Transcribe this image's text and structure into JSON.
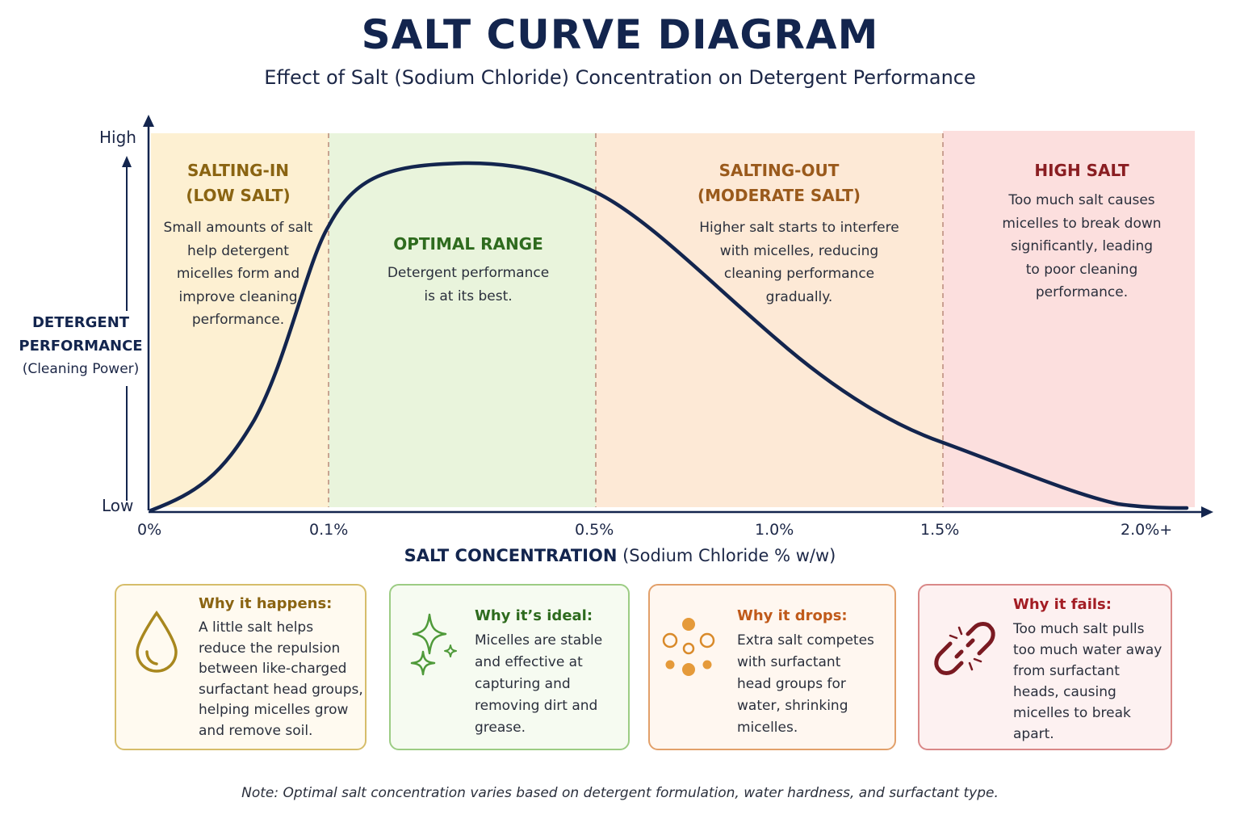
{
  "title": "SALT CURVE DIAGRAM",
  "subtitle": "Effect of Salt (Sodium Chloride) Concentration on Detergent Performance",
  "y_axis": {
    "high": "High",
    "low": "Low",
    "label_line1": "DETERGENT",
    "label_line2": "PERFORMANCE",
    "label_line3": "(Cleaning Power)"
  },
  "x_axis": {
    "label_bold": "SALT CONCENTRATION",
    "label_rest": " (Sodium Chloride % w/w)",
    "ticks": [
      "0%",
      "0.1%",
      "0.5%",
      "1.0%",
      "1.5%",
      "2.0%+"
    ]
  },
  "zones": [
    {
      "title_line1": "SALTING-IN",
      "title_line2": "(LOW SALT)",
      "desc": [
        "Small amounts of salt",
        "help detergent",
        "micelles form and",
        "improve cleaning",
        "performance."
      ],
      "color": "#8a6412",
      "fill": "#fdf0d2"
    },
    {
      "title_line1": "OPTIMAL RANGE",
      "desc": [
        "Detergent performance",
        "is at its best."
      ],
      "color": "#2e6b1e",
      "fill": "#e9f4dc"
    },
    {
      "title_line1": "SALTING-OUT",
      "title_line2": "(MODERATE SALT)",
      "desc": [
        "Higher salt starts to interfere",
        "with micelles, reducing",
        "cleaning performance",
        "gradually."
      ],
      "color": "#9a5a1c",
      "fill": "#fde9d6"
    },
    {
      "title_line1": "HIGH SALT",
      "desc": [
        "Too much salt causes",
        "micelles to break down",
        "significantly, leading",
        "to poor cleaning",
        "performance."
      ],
      "color": "#8a1e22",
      "fill": "#fcdfde"
    }
  ],
  "cards": [
    {
      "title": "Why it happens:",
      "icon": "droplet-icon",
      "lines": [
        "A little salt helps",
        "reduce the repulsion",
        "between like-charged",
        "surfactant head groups,",
        "helping micelles grow",
        "and remove soil."
      ],
      "color": "#a8871e",
      "title_color": "#8a6412",
      "bg": "#fffaf0"
    },
    {
      "title": "Why it’s ideal:",
      "icon": "sparkles-icon",
      "lines": [
        "Micelles are stable",
        "and effective at",
        "capturing and",
        "removing dirt and",
        "grease."
      ],
      "color": "#6aa84f",
      "title_color": "#2e6b1e",
      "bg": "#f6fbf1"
    },
    {
      "title": "Why it drops:",
      "icon": "dots-icon",
      "lines": [
        "Extra salt competes",
        "with surfactant",
        "head groups for",
        "water, shrinking",
        "micelles."
      ],
      "color": "#d98a3a",
      "title_color": "#c05a1a",
      "bg": "#fff7f0"
    },
    {
      "title": "Why it fails:",
      "icon": "broken-link-icon",
      "lines": [
        "Too much salt pulls",
        "too much water away",
        "from surfactant",
        "heads, causing",
        "micelles to break",
        "apart."
      ],
      "color": "#cc6a6a",
      "title_color": "#a31d24",
      "bg": "#fdf1f1"
    }
  ],
  "note": "Note: Optimal salt concentration varies based on detergent formulation, water hardness, and surfactant type.",
  "chart_data": {
    "type": "line",
    "title": "SALT CURVE DIAGRAM",
    "xlabel": "SALT CONCENTRATION (Sodium Chloride % w/w)",
    "ylabel": "DETERGENT PERFORMANCE (Cleaning Power)",
    "x_ticks": [
      "0%",
      "0.1%",
      "0.5%",
      "1.0%",
      "1.5%",
      "2.0%+"
    ],
    "y_ticks": [
      "Low",
      "High"
    ],
    "series": [
      {
        "points": [
          [
            0,
            0.0
          ],
          [
            0.05,
            0.12
          ],
          [
            0.1,
            0.78
          ],
          [
            0.2,
            0.92
          ],
          [
            0.3,
            0.94
          ],
          [
            0.5,
            0.87
          ],
          [
            0.75,
            0.62
          ],
          [
            1.0,
            0.42
          ],
          [
            1.25,
            0.26
          ],
          [
            1.5,
            0.17
          ],
          [
            1.75,
            0.05
          ],
          [
            2.0,
            0.01
          ]
        ]
      }
    ],
    "zone_boundaries": [
      0.1,
      0.5,
      1.5
    ]
  }
}
